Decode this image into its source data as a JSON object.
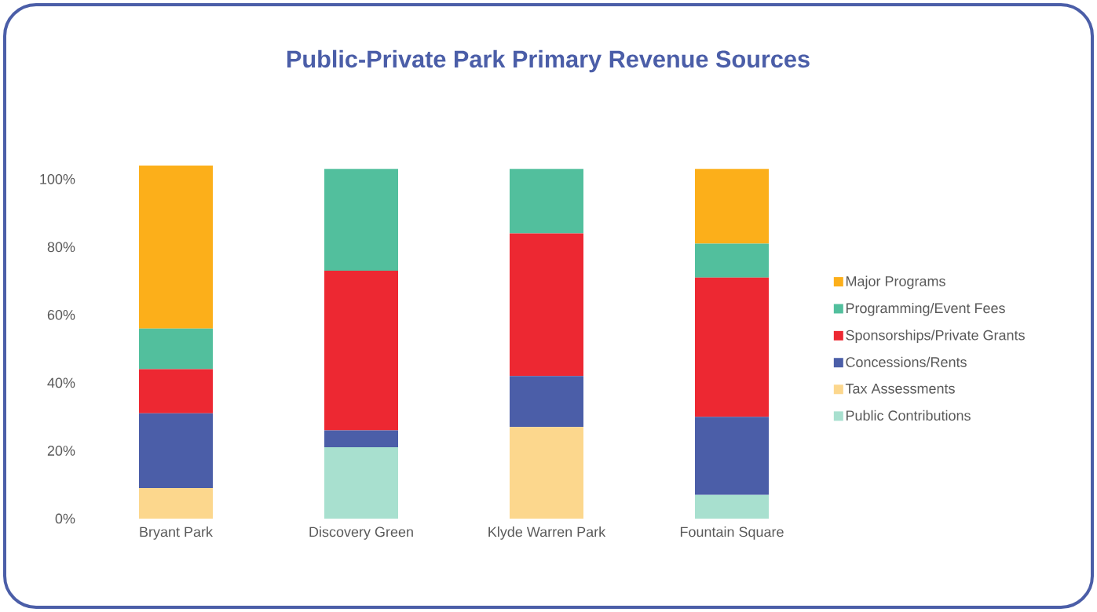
{
  "chart_data": {
    "type": "bar",
    "title": "Public-Private Park Primary Revenue Sources",
    "categories": [
      "Bryant Park",
      "Discovery Green",
      "Klyde Warren Park",
      "Fountain Square"
    ],
    "stacked": true,
    "series": [
      {
        "name": "Public Contributions",
        "color": "#a8e0cf",
        "values": [
          null,
          21,
          null,
          7
        ]
      },
      {
        "name": "Tax Assessments",
        "color": "#fcd78d",
        "values": [
          9,
          null,
          27,
          null
        ]
      },
      {
        "name": "Concessions/Rents",
        "color": "#4b5ea8",
        "values": [
          22,
          5,
          15,
          23
        ]
      },
      {
        "name": "Sponsorships/Private Grants",
        "color": "#ed2832",
        "values": [
          13,
          47,
          42,
          41
        ]
      },
      {
        "name": "Programming/Event Fees",
        "color": "#52bf9d",
        "values": [
          12,
          30,
          19,
          10
        ]
      },
      {
        "name": "Major Programs",
        "color": "#fcaf1a",
        "values": [
          48,
          null,
          null,
          22
        ]
      }
    ],
    "ylim": [
      0,
      104
    ],
    "yticks": [
      {
        "value": 0,
        "label": "0%"
      },
      {
        "value": 20,
        "label": "20%"
      },
      {
        "value": 40,
        "label": "40%"
      },
      {
        "value": 60,
        "label": "60%"
      },
      {
        "value": 80,
        "label": "80%"
      },
      {
        "value": 100,
        "label": "100%"
      }
    ],
    "grid": false,
    "legend": "right"
  }
}
